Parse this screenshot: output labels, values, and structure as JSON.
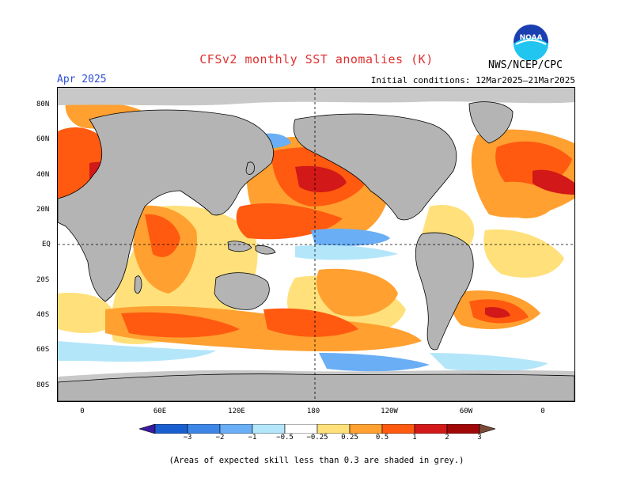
{
  "header": {
    "title": "CFSv2 monthly SST anomalies (K)",
    "target_month": "Apr 2025",
    "initial_conditions": "Initial conditions: 12Mar2025–21Mar2025",
    "org": "NWS/NCEP/CPC",
    "logo_text": "NOAA"
  },
  "axes": {
    "lat_labels": [
      "80N",
      "60N",
      "40N",
      "20N",
      "EQ",
      "20S",
      "40S",
      "60S",
      "80S"
    ],
    "lon_labels": [
      "0",
      "60E",
      "120E",
      "180",
      "120W",
      "60W",
      "0"
    ]
  },
  "colorbar": {
    "labels": [
      "−3",
      "−2",
      "−1",
      "−0.5",
      "−0.25",
      "0.25",
      "0.5",
      "1",
      "2",
      "3"
    ],
    "colors": [
      "#3a1aa0",
      "#1a5fd0",
      "#3d86e8",
      "#6aaef5",
      "#b4e6fa",
      "#ffffff",
      "#ffe07a",
      "#ffa030",
      "#ff5a10",
      "#d21818",
      "#a00808",
      "#7a4a3a"
    ]
  },
  "legend": {
    "land_color": "#b4b4b4",
    "skill_mask_color": "#c8c8c8"
  },
  "footer": {
    "note": "(Areas of expected skill less than 0.3 are shaded in grey.)"
  }
}
